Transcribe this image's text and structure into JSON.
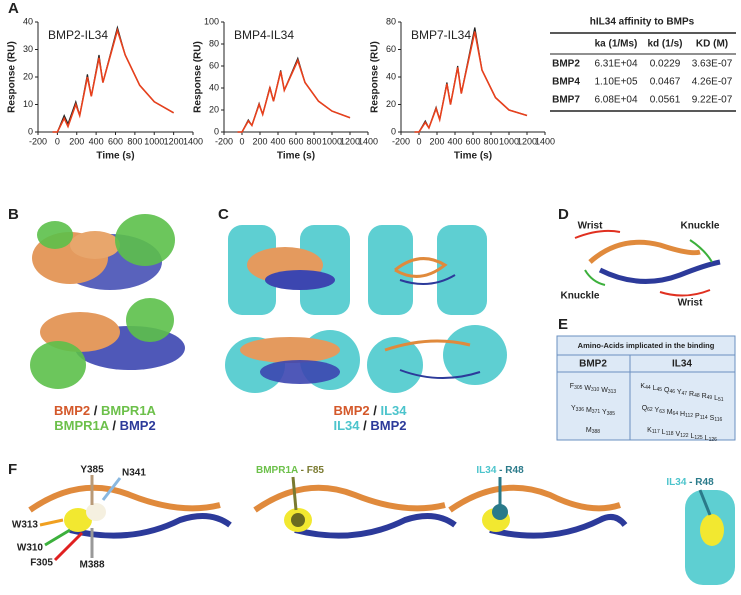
{
  "panel_labels": [
    "A",
    "B",
    "C",
    "D",
    "E",
    "F"
  ],
  "chart_data": [
    {
      "type": "line",
      "title": "BMP2-IL34",
      "xlabel": "Time (s)",
      "ylabel": "Response (RU)",
      "x": [
        -50,
        0,
        70,
        110,
        190,
        230,
        310,
        350,
        430,
        470,
        620,
        700,
        850,
        1000,
        1200
      ],
      "series": [
        {
          "color": "#222222",
          "values": [
            0,
            0,
            6,
            3,
            11,
            6,
            21,
            13,
            28,
            18,
            38,
            28,
            17,
            11,
            7
          ]
        },
        {
          "color": "#e8401c",
          "values": [
            0,
            0,
            5,
            2,
            10,
            6,
            20,
            13,
            27,
            18,
            37,
            28,
            17,
            11,
            7
          ]
        }
      ],
      "xlim": [
        -200,
        1400
      ],
      "xticks": [
        -200,
        0,
        200,
        400,
        600,
        800,
        1000,
        1200,
        1400
      ],
      "ylim": [
        0,
        40
      ],
      "yticks": [
        0,
        10,
        20,
        30,
        40
      ]
    },
    {
      "type": "line",
      "title": "BMP4-IL34",
      "xlabel": "Time (s)",
      "ylabel": "Response (RU)",
      "x": [
        -50,
        0,
        70,
        110,
        190,
        230,
        310,
        350,
        430,
        470,
        620,
        700,
        850,
        1000,
        1200
      ],
      "series": [
        {
          "color": "#222222",
          "values": [
            0,
            0,
            11,
            6,
            26,
            16,
            41,
            28,
            56,
            38,
            67,
            45,
            28,
            19,
            13
          ]
        },
        {
          "color": "#e8401c",
          "values": [
            0,
            0,
            10,
            6,
            25,
            16,
            40,
            28,
            55,
            38,
            65,
            45,
            28,
            19,
            13
          ]
        }
      ],
      "xlim": [
        -200,
        1400
      ],
      "xticks": [
        -200,
        0,
        200,
        400,
        600,
        800,
        1000,
        1200,
        1400
      ],
      "ylim": [
        0,
        100
      ],
      "yticks": [
        0,
        20,
        40,
        60,
        80,
        100
      ]
    },
    {
      "type": "line",
      "title": "BMP7-IL34",
      "xlabel": "Time (s)",
      "ylabel": "Response (RU)",
      "x": [
        -50,
        0,
        70,
        110,
        190,
        230,
        310,
        350,
        430,
        470,
        620,
        700,
        850,
        1000,
        1200
      ],
      "series": [
        {
          "color": "#222222",
          "values": [
            0,
            0,
            8,
            3,
            18,
            9,
            36,
            20,
            48,
            28,
            76,
            45,
            25,
            16,
            12
          ]
        },
        {
          "color": "#e8401c",
          "values": [
            0,
            0,
            7,
            3,
            17,
            9,
            35,
            20,
            47,
            28,
            73,
            45,
            25,
            16,
            12
          ]
        }
      ],
      "xlim": [
        -200,
        1400
      ],
      "xticks": [
        -200,
        0,
        200,
        400,
        600,
        800,
        1000,
        1200,
        1400
      ],
      "ylim": [
        0,
        80
      ],
      "yticks": [
        0,
        20,
        40,
        60,
        80
      ]
    }
  ],
  "affinity_table": {
    "title": "hIL34 affinity to BMPs",
    "columns": [
      "ka (1/Ms)",
      "kd (1/s)",
      "KD (M)"
    ],
    "rows": [
      [
        "BMP2",
        "6.31E+04",
        "0.0229",
        "3.63E-07"
      ],
      [
        "BMP4",
        "1.10E+05",
        "0.0467",
        "4.26E-07"
      ],
      [
        "BMP7",
        "6.08E+04",
        "0.0561",
        "9.22E-07"
      ]
    ]
  },
  "panel_b": {
    "captions": [
      [
        {
          "text": "BMP2",
          "color": "#d4582a"
        },
        {
          "text": "/",
          "color": "#222222"
        },
        {
          "text": "BMPR1A",
          "color": "#6cc04a"
        }
      ],
      [
        {
          "text": "BMPR1A",
          "color": "#6cc04a"
        },
        {
          "text": "/",
          "color": "#222222"
        },
        {
          "text": "BMP2",
          "color": "#2c3a9a"
        }
      ]
    ]
  },
  "panel_c": {
    "captions": [
      [
        {
          "text": "BMP2",
          "color": "#d4582a"
        },
        {
          "text": "/",
          "color": "#222222"
        },
        {
          "text": "IL34",
          "color": "#4cc4cc"
        }
      ],
      [
        {
          "text": "IL34",
          "color": "#4cc4cc"
        },
        {
          "text": "/",
          "color": "#222222"
        },
        {
          "text": "BMP2",
          "color": "#2c3a9a"
        }
      ]
    ]
  },
  "panel_d": {
    "labels": [
      {
        "text": "Wrist",
        "color": "#e03020"
      },
      {
        "text": "Knuckle",
        "color": "#3cb03c"
      },
      {
        "text": "Knuckle",
        "color": "#3cb03c"
      },
      {
        "text": "Wrist",
        "color": "#e03020"
      }
    ]
  },
  "panel_e": {
    "title": "Amino-Acids implicated in the binding",
    "columns": [
      "BMP2",
      "IL34"
    ],
    "rows": [
      [
        "F305 W310 W313",
        "K44 L45 Q46 Y47 R48 R49 L51"
      ],
      [
        "Y336 M371 Y385",
        "Q62 Y63 M64 H112 P114 S116"
      ],
      [
        "M388",
        "K117 L118 V122 L125 L126"
      ]
    ]
  },
  "panel_f": {
    "labels": [
      {
        "text": "Y385",
        "color": "#b89a78"
      },
      {
        "text": "N341",
        "color": "#8ab8e0"
      },
      {
        "text": "W313",
        "color": "#f0a020"
      },
      {
        "text": "W310",
        "color": "#3cb03c"
      },
      {
        "text": "F305",
        "color": "#e02020"
      },
      {
        "text": "M388",
        "color": "#999999"
      }
    ],
    "compound_labels": [
      [
        {
          "text": "BMPR1A",
          "color": "#6cc04a"
        },
        {
          "text": "- F85",
          "color": "#7a7a30"
        }
      ],
      [
        {
          "text": "IL34",
          "color": "#4cc4cc"
        },
        {
          "text": "- R48",
          "color": "#2a7a8a"
        }
      ],
      [
        {
          "text": "IL34",
          "color": "#4cc4cc"
        },
        {
          "text": "- R48",
          "color": "#2a7a8a"
        }
      ]
    ]
  }
}
